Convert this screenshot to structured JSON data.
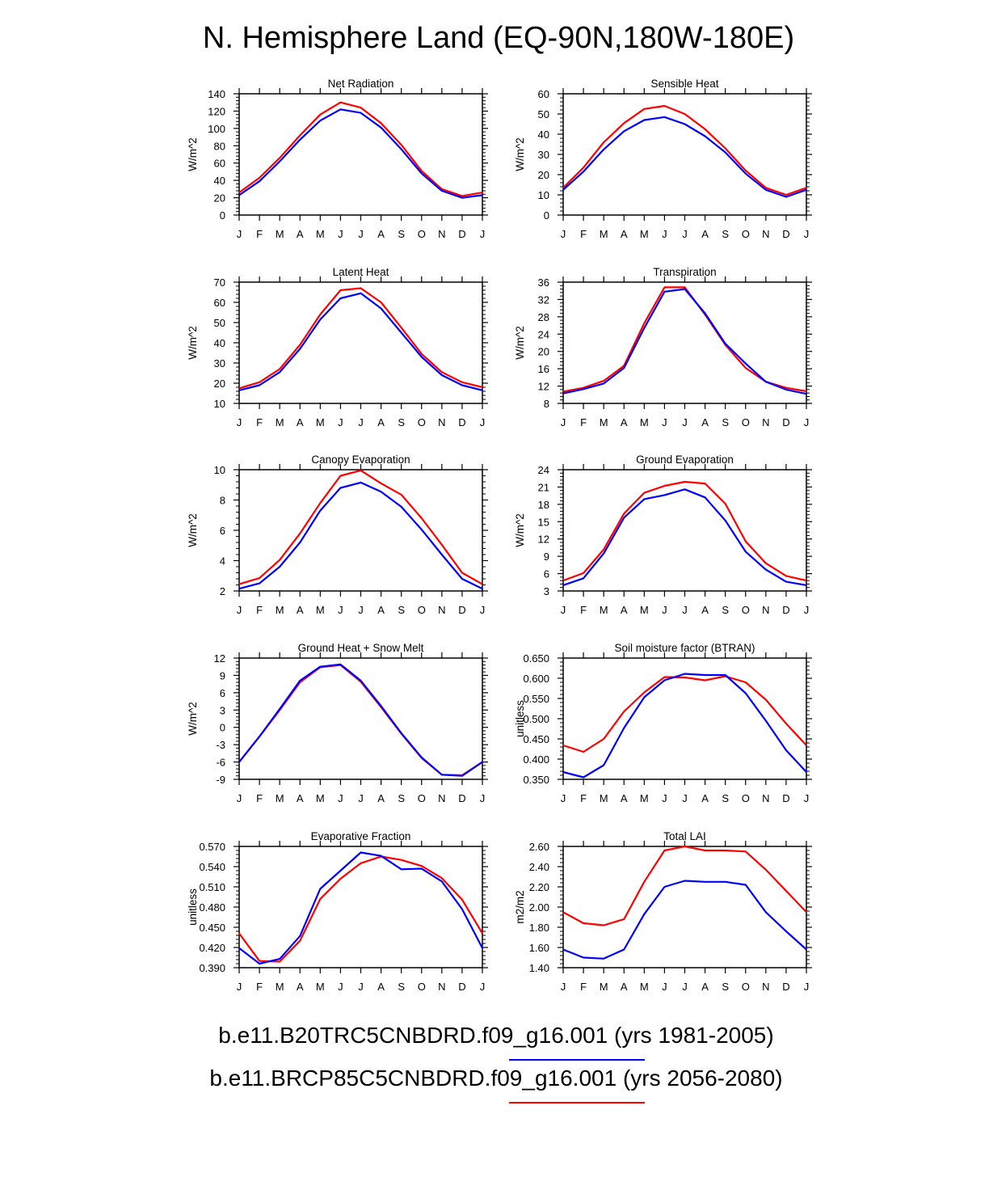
{
  "title": "N. Hemisphere Land (EQ-90N,180W-180E)",
  "legend": [
    {
      "label": "b.e11.B20TRC5CNBDRD.f09_g16.001 (yrs 1981-2005)",
      "color": "#0000ff"
    },
    {
      "label": "b.e11.BRCP85C5CNBDRD.f09_g16.001 (yrs 2056-2080)",
      "color": "#ff0000"
    }
  ],
  "colors": {
    "series1": "#0000ff",
    "series2": "#ff0000"
  },
  "chart_data": [
    {
      "type": "line",
      "title": "Net Radiation",
      "ylabel": "W/m^2",
      "categories": [
        "J",
        "F",
        "M",
        "A",
        "M",
        "J",
        "J",
        "A",
        "S",
        "O",
        "N",
        "D",
        "J"
      ],
      "ylim": [
        0,
        140
      ],
      "yticks": [
        0,
        20,
        40,
        60,
        80,
        100,
        120,
        140
      ],
      "decimals": 0,
      "series": [
        {
          "name": "b.e11.B20TRC5CNBDRD.f09_g16.001 (yrs 1981-2005)",
          "values": [
            23,
            39,
            62,
            87,
            109,
            122,
            118,
            101,
            76,
            48,
            28,
            20,
            23
          ]
        },
        {
          "name": "b.e11.BRCP85C5CNBDRD.f09_g16.001 (yrs 2056-2080)",
          "values": [
            26,
            43,
            66,
            92,
            116,
            130,
            124,
            106,
            81,
            51,
            30,
            22,
            26
          ]
        }
      ]
    },
    {
      "type": "line",
      "title": "Sensible Heat",
      "ylabel": "W/m^2",
      "categories": [
        "J",
        "F",
        "M",
        "A",
        "M",
        "J",
        "J",
        "A",
        "S",
        "O",
        "N",
        "D",
        "J"
      ],
      "ylim": [
        0,
        60
      ],
      "yticks": [
        0,
        10,
        20,
        30,
        40,
        50,
        60
      ],
      "decimals": 0,
      "series": [
        {
          "name": "b.e11.B20TRC5CNBDRD.f09_g16.001 (yrs 1981-2005)",
          "values": [
            12.5,
            21.5,
            32.5,
            41.5,
            47,
            48.5,
            45,
            39,
            31,
            20.5,
            12.5,
            9,
            12.5
          ]
        },
        {
          "name": "b.e11.BRCP85C5CNBDRD.f09_g16.001 (yrs 2056-2080)",
          "values": [
            13.5,
            23.5,
            36,
            45.5,
            52.5,
            54,
            50,
            42.5,
            33,
            22,
            13.5,
            10,
            13.5
          ]
        }
      ]
    },
    {
      "type": "line",
      "title": "Latent Heat",
      "ylabel": "W/m^2",
      "categories": [
        "J",
        "F",
        "M",
        "A",
        "M",
        "J",
        "J",
        "A",
        "S",
        "O",
        "N",
        "D",
        "J"
      ],
      "ylim": [
        10,
        70
      ],
      "yticks": [
        10,
        20,
        30,
        40,
        50,
        60,
        70
      ],
      "decimals": 0,
      "series": [
        {
          "name": "b.e11.B20TRC5CNBDRD.f09_g16.001 (yrs 1981-2005)",
          "values": [
            16.5,
            19,
            25.5,
            37,
            51.5,
            62,
            64.5,
            57,
            45,
            33,
            24,
            19,
            16.5
          ]
        },
        {
          "name": "b.e11.BRCP85C5CNBDRD.f09_g16.001 (yrs 2056-2080)",
          "values": [
            17.5,
            20.5,
            27,
            39,
            54,
            66,
            67,
            60,
            47.5,
            34.5,
            25.5,
            20.5,
            18
          ]
        }
      ]
    },
    {
      "type": "line",
      "title": "Transpiration",
      "ylabel": "W/m^2",
      "categories": [
        "J",
        "F",
        "M",
        "A",
        "M",
        "J",
        "J",
        "A",
        "S",
        "O",
        "N",
        "D",
        "J"
      ],
      "ylim": [
        8,
        36
      ],
      "yticks": [
        8,
        12,
        16,
        20,
        24,
        28,
        32,
        36
      ],
      "decimals": 0,
      "series": [
        {
          "name": "b.e11.B20TRC5CNBDRD.f09_g16.001 (yrs 1981-2005)",
          "values": [
            10.3,
            11.3,
            12.6,
            16.2,
            25.4,
            33.8,
            34.4,
            28.8,
            21.8,
            17.2,
            13,
            11.2,
            10.2
          ]
        },
        {
          "name": "b.e11.BRCP85C5CNBDRD.f09_g16.001 (yrs 2056-2080)",
          "values": [
            10.7,
            11.6,
            13.2,
            16.7,
            26.5,
            34.8,
            34.8,
            28.5,
            21.5,
            16.2,
            13,
            11.6,
            10.8
          ]
        }
      ]
    },
    {
      "type": "line",
      "title": "Canopy Evaporation",
      "ylabel": "W/m^2",
      "categories": [
        "J",
        "F",
        "M",
        "A",
        "M",
        "J",
        "J",
        "A",
        "S",
        "O",
        "N",
        "D",
        "J"
      ],
      "ylim": [
        2,
        10
      ],
      "yticks": [
        2,
        4,
        6,
        8,
        10
      ],
      "decimals": 0,
      "series": [
        {
          "name": "b.e11.B20TRC5CNBDRD.f09_g16.001 (yrs 1981-2005)",
          "values": [
            2.15,
            2.5,
            3.6,
            5.2,
            7.3,
            8.8,
            9.15,
            8.55,
            7.55,
            6.05,
            4.4,
            2.8,
            2.15
          ]
        },
        {
          "name": "b.e11.BRCP85C5CNBDRD.f09_g16.001 (yrs 2056-2080)",
          "values": [
            2.45,
            2.85,
            4.05,
            5.8,
            7.8,
            9.6,
            9.95,
            9.1,
            8.35,
            6.8,
            5.05,
            3.2,
            2.45
          ]
        }
      ]
    },
    {
      "type": "line",
      "title": "Ground Evaporation",
      "ylabel": "W/m^2",
      "categories": [
        "J",
        "F",
        "M",
        "A",
        "M",
        "J",
        "J",
        "A",
        "S",
        "O",
        "N",
        "D",
        "J"
      ],
      "ylim": [
        3,
        24
      ],
      "yticks": [
        3,
        6,
        9,
        12,
        15,
        18,
        21,
        24
      ],
      "decimals": 0,
      "series": [
        {
          "name": "b.e11.B20TRC5CNBDRD.f09_g16.001 (yrs 1981-2005)",
          "values": [
            4,
            5.2,
            9.5,
            15.7,
            18.9,
            19.6,
            20.6,
            19.2,
            15.2,
            9.8,
            6.7,
            4.6,
            4
          ]
        },
        {
          "name": "b.e11.BRCP85C5CNBDRD.f09_g16.001 (yrs 2056-2080)",
          "values": [
            4.8,
            6.1,
            10.2,
            16.4,
            20,
            21.2,
            21.9,
            21.6,
            18.1,
            11.6,
            7.8,
            5.6,
            4.8
          ]
        }
      ]
    },
    {
      "type": "line",
      "title": "Ground Heat + Snow Melt",
      "ylabel": "W/m^2",
      "categories": [
        "J",
        "F",
        "M",
        "A",
        "M",
        "J",
        "J",
        "A",
        "S",
        "O",
        "N",
        "D",
        "J"
      ],
      "ylim": [
        -9,
        12
      ],
      "yticks": [
        -9,
        -6,
        -3,
        0,
        3,
        6,
        9,
        12
      ],
      "decimals": 0,
      "series": [
        {
          "name": "b.e11.B20TRC5CNBDRD.f09_g16.001 (yrs 1981-2005)",
          "values": [
            -6,
            -1.6,
            3.2,
            8.1,
            10.5,
            10.9,
            8.1,
            3.7,
            -1,
            -5.2,
            -8.2,
            -8.4,
            -6
          ]
        },
        {
          "name": "b.e11.BRCP85C5CNBDRD.f09_g16.001 (yrs 2056-2080)",
          "values": [
            -6,
            -1.6,
            3,
            7.8,
            10.4,
            10.8,
            7.9,
            3.5,
            -1.1,
            -5.3,
            -8.2,
            -8.3,
            -6
          ]
        }
      ]
    },
    {
      "type": "line",
      "title": "Soil moisture factor (BTRAN)",
      "ylabel": "unitless",
      "categories": [
        "J",
        "F",
        "M",
        "A",
        "M",
        "J",
        "J",
        "A",
        "S",
        "O",
        "N",
        "D",
        "J"
      ],
      "ylim": [
        0.35,
        0.65
      ],
      "yticks": [
        0.35,
        0.4,
        0.45,
        0.5,
        0.55,
        0.6,
        0.65
      ],
      "decimals": 3,
      "series": [
        {
          "name": "b.e11.B20TRC5CNBDRD.f09_g16.001 (yrs 1981-2005)",
          "values": [
            0.368,
            0.355,
            0.385,
            0.477,
            0.553,
            0.595,
            0.611,
            0.608,
            0.608,
            0.563,
            0.495,
            0.422,
            0.368
          ]
        },
        {
          "name": "b.e11.BRCP85C5CNBDRD.f09_g16.001 (yrs 2056-2080)",
          "values": [
            0.434,
            0.418,
            0.45,
            0.518,
            0.565,
            0.603,
            0.602,
            0.595,
            0.605,
            0.59,
            0.547,
            0.488,
            0.434
          ]
        }
      ]
    },
    {
      "type": "line",
      "title": "Evaporative Fraction",
      "ylabel": "unitless",
      "categories": [
        "J",
        "F",
        "M",
        "A",
        "M",
        "J",
        "J",
        "A",
        "S",
        "O",
        "N",
        "D",
        "J"
      ],
      "ylim": [
        0.39,
        0.57
      ],
      "yticks": [
        0.39,
        0.42,
        0.45,
        0.48,
        0.51,
        0.54,
        0.57
      ],
      "decimals": 3,
      "series": [
        {
          "name": "b.e11.B20TRC5CNBDRD.f09_g16.001 (yrs 1981-2005)",
          "values": [
            0.419,
            0.396,
            0.403,
            0.437,
            0.507,
            0.534,
            0.561,
            0.556,
            0.536,
            0.537,
            0.518,
            0.477,
            0.419
          ]
        },
        {
          "name": "b.e11.BRCP85C5CNBDRD.f09_g16.001 (yrs 2056-2080)",
          "values": [
            0.441,
            0.4,
            0.399,
            0.43,
            0.492,
            0.522,
            0.545,
            0.555,
            0.55,
            0.541,
            0.523,
            0.491,
            0.441
          ]
        }
      ]
    },
    {
      "type": "line",
      "title": "Total LAI",
      "ylabel": "m2/m2",
      "categories": [
        "J",
        "F",
        "M",
        "A",
        "M",
        "J",
        "J",
        "A",
        "S",
        "O",
        "N",
        "D",
        "J"
      ],
      "ylim": [
        1.4,
        2.6
      ],
      "yticks": [
        1.4,
        1.6,
        1.8,
        2,
        2.2,
        2.4,
        2.6
      ],
      "decimals": 2,
      "series": [
        {
          "name": "b.e11.B20TRC5CNBDRD.f09_g16.001 (yrs 1981-2005)",
          "values": [
            1.58,
            1.5,
            1.49,
            1.58,
            1.93,
            2.2,
            2.26,
            2.25,
            2.25,
            2.22,
            1.95,
            1.76,
            1.58
          ]
        },
        {
          "name": "b.e11.BRCP85C5CNBDRD.f09_g16.001 (yrs 2056-2080)",
          "values": [
            1.95,
            1.84,
            1.82,
            1.88,
            2.25,
            2.56,
            2.6,
            2.56,
            2.56,
            2.55,
            2.37,
            2.16,
            1.95
          ]
        }
      ]
    }
  ]
}
